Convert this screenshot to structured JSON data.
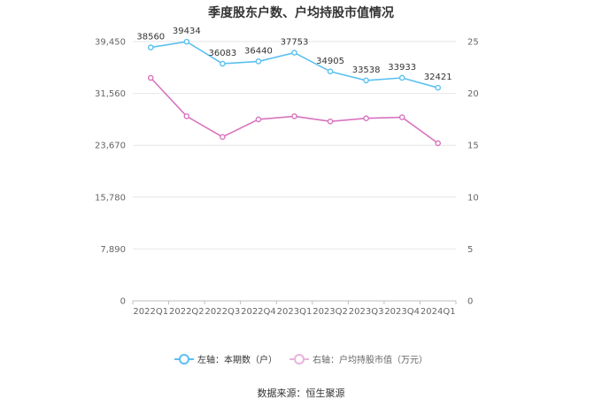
{
  "chart_data": {
    "type": "line",
    "title": "季度股东户数、户均持股市值情况",
    "categories": [
      "2022Q1",
      "2022Q2",
      "2022Q3",
      "2022Q4",
      "2023Q1",
      "2023Q2",
      "2023Q3",
      "2023Q4",
      "2024Q1"
    ],
    "left_axis": {
      "ticks": [
        "0",
        "7,890",
        "15,780",
        "23,670",
        "31,560",
        "39,450"
      ],
      "ylim": [
        0,
        39450
      ]
    },
    "right_axis": {
      "ticks": [
        "0",
        "5",
        "10",
        "15",
        "20",
        "25"
      ],
      "ylim": [
        0,
        25
      ]
    },
    "grid": true,
    "legend_position": "bottom",
    "series": [
      {
        "name": "左轴：本期数（户）",
        "axis": "left",
        "color": "#5bc0f0",
        "values": [
          38560,
          39434,
          36083,
          36440,
          37753,
          34905,
          33538,
          33933,
          32421
        ],
        "labels": [
          "38560",
          "39434",
          "36083",
          "36440",
          "37753",
          "34905",
          "33538",
          "33933",
          "32421"
        ]
      },
      {
        "name": "右轴：户均持股市值（万元）",
        "axis": "right",
        "color": "#d874be",
        "values": [
          21.5,
          17.8,
          15.8,
          17.5,
          17.8,
          17.3,
          17.6,
          17.7,
          15.2
        ]
      }
    ]
  },
  "source": "数据来源：恒生聚源"
}
